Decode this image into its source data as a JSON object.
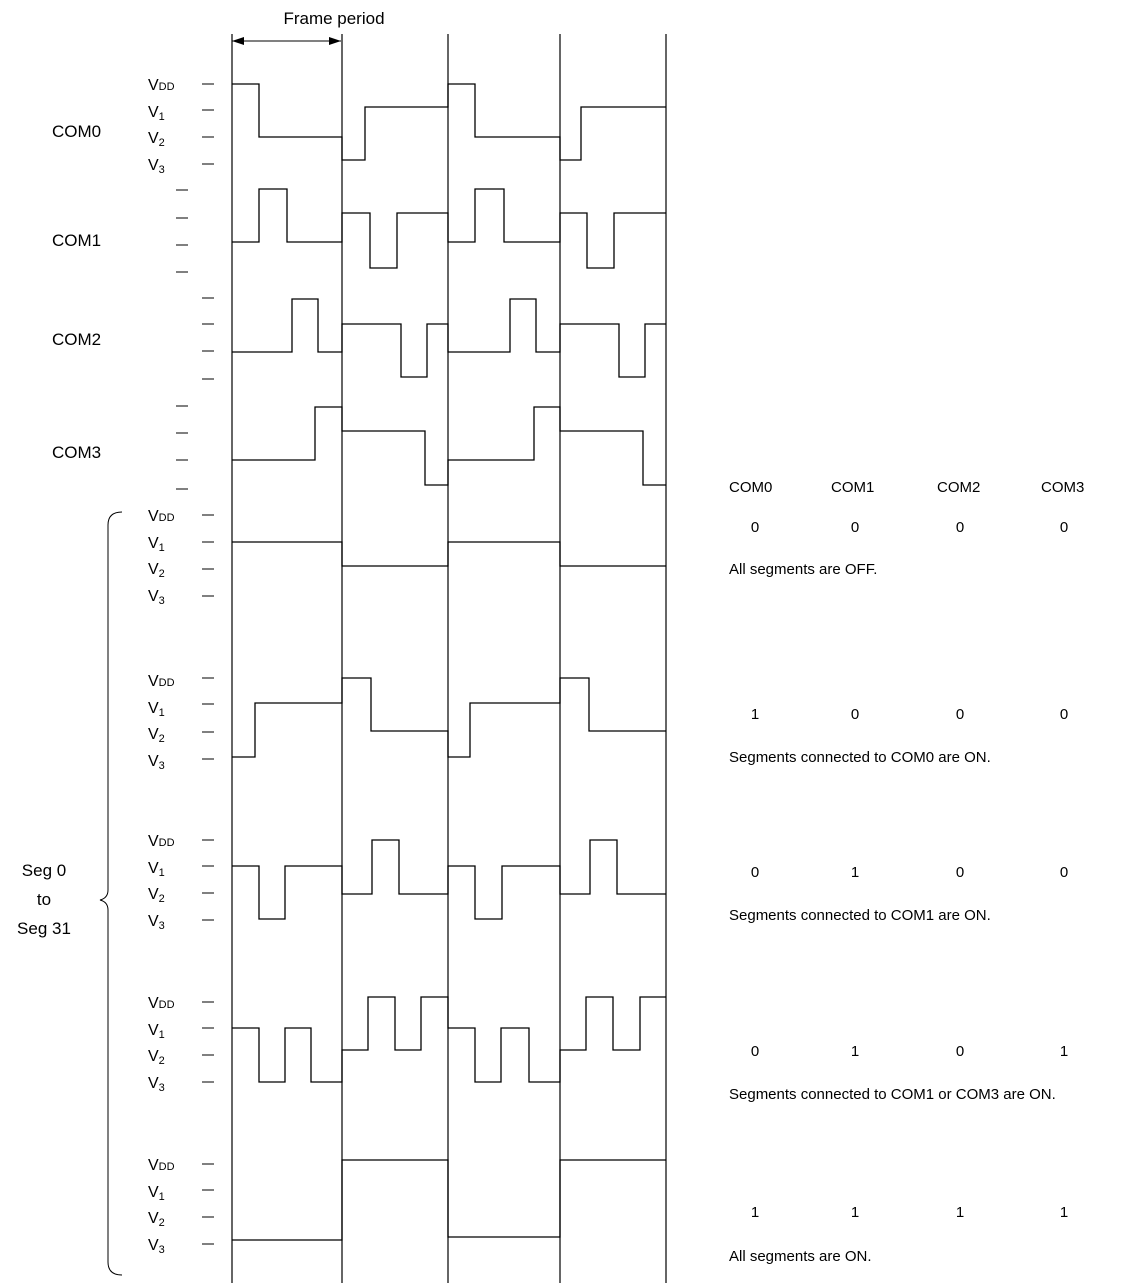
{
  "frame_label": "Frame period",
  "com_rows": [
    {
      "label": "COM0",
      "levels": [
        "V",
        "V",
        "V",
        "V"
      ],
      "level_subs": [
        "DD",
        "1",
        "2",
        "3"
      ]
    },
    {
      "label": "COM1"
    },
    {
      "label": "COM2"
    },
    {
      "label": "COM3"
    }
  ],
  "seg_label": {
    "line1": "Seg 0",
    "line2": "to",
    "line3": "Seg 31"
  },
  "seg_row_levels": {
    "letters": [
      "V",
      "V",
      "V",
      "V"
    ],
    "subs": [
      "DD",
      "1",
      "2",
      "3"
    ]
  },
  "table": {
    "headers": [
      "COM0",
      "COM1",
      "COM2",
      "COM3"
    ],
    "rows": [
      {
        "values": [
          "0",
          "0",
          "0",
          "0"
        ],
        "caption": "All segments are OFF."
      },
      {
        "values": [
          "1",
          "0",
          "0",
          "0"
        ],
        "caption": "Segments connected to COM0 are ON."
      },
      {
        "values": [
          "0",
          "1",
          "0",
          "0"
        ],
        "caption": "Segments connected to COM1 are ON."
      },
      {
        "values": [
          "0",
          "1",
          "0",
          "1"
        ],
        "caption": "Segments connected to COM1 or COM3 are ON."
      },
      {
        "values": [
          "1",
          "1",
          "1",
          "1"
        ],
        "caption": "All segments are ON."
      }
    ]
  }
}
